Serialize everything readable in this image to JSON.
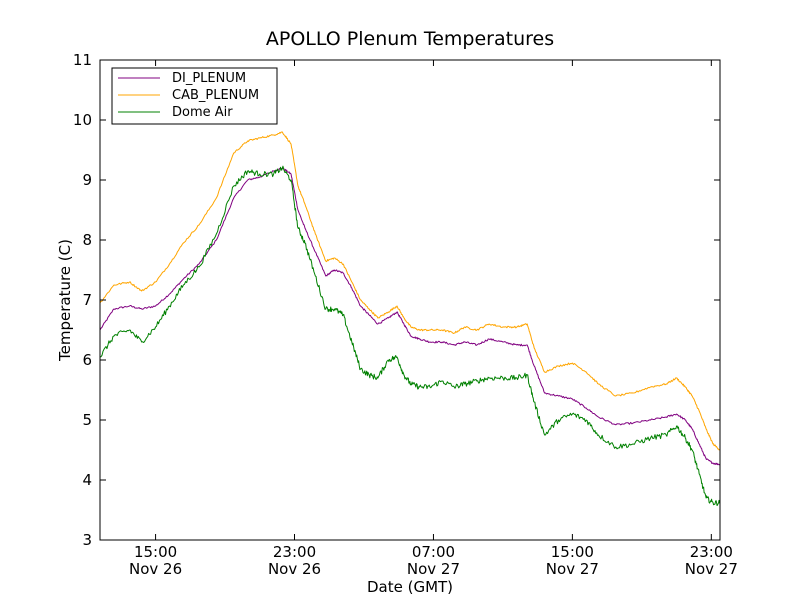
{
  "chart_data": {
    "type": "line",
    "title": "APOLLO Plenum Temperatures",
    "xlabel": "Date (GMT)",
    "ylabel": "Temperature (C)",
    "xlim": [
      11.8,
      47.5
    ],
    "ylim": [
      3,
      11
    ],
    "yticks": [
      3,
      4,
      5,
      6,
      7,
      8,
      9,
      10,
      11
    ],
    "xticks": [
      {
        "value": 15,
        "line1": "15:00",
        "line2": "Nov 26"
      },
      {
        "value": 23,
        "line1": "23:00",
        "line2": "Nov 26"
      },
      {
        "value": 31,
        "line1": "07:00",
        "line2": "Nov 27"
      },
      {
        "value": 39,
        "line1": "15:00",
        "line2": "Nov 27"
      },
      {
        "value": 47,
        "line1": "23:00",
        "line2": "Nov 27"
      }
    ],
    "legend_position": "top-left",
    "series": [
      {
        "name": "DI_PLENUM",
        "color": "#800080",
        "noise": 0.015,
        "x": [
          11.8,
          12.6,
          13.5,
          14.2,
          15.0,
          15.8,
          16.6,
          17.5,
          18.5,
          19.5,
          20.3,
          21.0,
          21.8,
          22.3,
          22.8,
          23.2,
          23.6,
          24.2,
          24.8,
          25.3,
          25.8,
          26.3,
          26.8,
          27.3,
          27.8,
          28.4,
          28.9,
          29.3,
          29.7,
          30.2,
          30.8,
          31.5,
          32.2,
          32.8,
          33.5,
          34.2,
          35.0,
          35.8,
          36.4,
          36.8,
          37.4,
          38.2,
          39.0,
          39.8,
          40.5,
          41.5,
          42.5,
          43.5,
          44.4,
          45.0,
          45.5,
          45.9,
          46.3,
          46.7,
          47.1,
          47.5
        ],
        "values": [
          6.5,
          6.85,
          6.9,
          6.85,
          6.9,
          7.1,
          7.35,
          7.6,
          8.0,
          8.7,
          9.0,
          9.05,
          9.15,
          9.2,
          9.1,
          8.5,
          8.2,
          7.8,
          7.4,
          7.5,
          7.45,
          7.2,
          6.9,
          6.75,
          6.6,
          6.7,
          6.8,
          6.6,
          6.4,
          6.35,
          6.3,
          6.3,
          6.25,
          6.3,
          6.25,
          6.35,
          6.3,
          6.25,
          6.25,
          5.9,
          5.45,
          5.4,
          5.35,
          5.2,
          5.05,
          4.92,
          4.95,
          5.0,
          5.05,
          5.1,
          5.0,
          4.85,
          4.6,
          4.35,
          4.28,
          4.26
        ]
      },
      {
        "name": "CAB_PLENUM",
        "color": "#ffa500",
        "noise": 0.015,
        "x": [
          11.8,
          12.6,
          13.5,
          14.2,
          15.0,
          15.8,
          16.6,
          17.5,
          18.5,
          19.5,
          20.3,
          21.0,
          21.8,
          22.3,
          22.8,
          23.2,
          23.6,
          24.2,
          24.8,
          25.3,
          25.8,
          26.3,
          26.8,
          27.3,
          27.8,
          28.4,
          28.9,
          29.3,
          29.7,
          30.2,
          30.8,
          31.5,
          32.2,
          32.8,
          33.5,
          34.2,
          35.0,
          35.8,
          36.4,
          36.8,
          37.4,
          38.2,
          39.0,
          39.8,
          40.5,
          41.5,
          42.5,
          43.5,
          44.4,
          45.0,
          45.5,
          45.9,
          46.3,
          46.7,
          47.1,
          47.5
        ],
        "values": [
          6.95,
          7.25,
          7.3,
          7.15,
          7.3,
          7.6,
          7.95,
          8.25,
          8.7,
          9.45,
          9.65,
          9.7,
          9.75,
          9.8,
          9.6,
          8.9,
          8.6,
          8.1,
          7.65,
          7.7,
          7.6,
          7.3,
          7.0,
          6.85,
          6.7,
          6.8,
          6.9,
          6.7,
          6.55,
          6.5,
          6.5,
          6.5,
          6.45,
          6.55,
          6.5,
          6.6,
          6.55,
          6.55,
          6.6,
          6.2,
          5.8,
          5.9,
          5.95,
          5.8,
          5.6,
          5.4,
          5.45,
          5.55,
          5.6,
          5.7,
          5.55,
          5.4,
          5.15,
          4.85,
          4.6,
          4.5
        ]
      },
      {
        "name": "Dome Air",
        "color": "#008000",
        "noise": 0.045,
        "x": [
          11.8,
          12.6,
          13.5,
          14.2,
          15.0,
          15.8,
          16.6,
          17.5,
          18.5,
          19.5,
          20.3,
          21.0,
          21.8,
          22.3,
          22.8,
          23.2,
          23.6,
          24.2,
          24.8,
          25.3,
          25.8,
          26.3,
          26.8,
          27.3,
          27.8,
          28.4,
          28.9,
          29.3,
          29.7,
          30.2,
          30.8,
          31.5,
          32.2,
          32.8,
          33.5,
          34.2,
          35.0,
          35.8,
          36.4,
          36.8,
          37.4,
          38.2,
          39.0,
          39.8,
          40.5,
          41.5,
          42.5,
          43.5,
          44.4,
          45.0,
          45.5,
          45.9,
          46.3,
          46.7,
          47.1,
          47.5
        ],
        "values": [
          6.05,
          6.4,
          6.5,
          6.3,
          6.55,
          6.9,
          7.25,
          7.55,
          8.1,
          8.9,
          9.15,
          9.1,
          9.1,
          9.2,
          9.0,
          8.2,
          7.95,
          7.4,
          6.85,
          6.85,
          6.75,
          6.3,
          5.85,
          5.75,
          5.7,
          6.0,
          6.05,
          5.75,
          5.6,
          5.55,
          5.55,
          5.65,
          5.55,
          5.6,
          5.65,
          5.7,
          5.7,
          5.7,
          5.75,
          5.3,
          4.75,
          5.0,
          5.1,
          5.0,
          4.75,
          4.55,
          4.6,
          4.7,
          4.75,
          4.9,
          4.7,
          4.5,
          4.1,
          3.7,
          3.62,
          3.62
        ]
      }
    ]
  }
}
